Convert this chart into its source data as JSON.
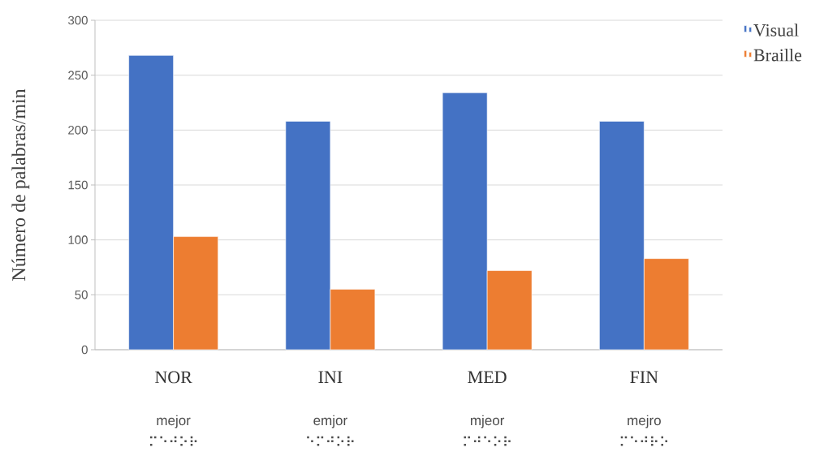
{
  "chart_data": {
    "type": "bar",
    "ylabel": "Número de palabras/min",
    "categories": [
      "NOR",
      "INI",
      "MED",
      "FIN"
    ],
    "series": [
      {
        "name": "Visual",
        "color": "#4472c4",
        "values": [
          268,
          208,
          234,
          208
        ]
      },
      {
        "name": "Braille",
        "color": "#ed7d31",
        "values": [
          103,
          55,
          72,
          83
        ]
      }
    ],
    "ylim": [
      0,
      300
    ],
    "yticks": [
      0,
      50,
      100,
      150,
      200,
      250,
      300
    ],
    "grid": "y",
    "legend": "top right",
    "annotations": [
      "mejor",
      "⠍⠑⠚⠕⠗",
      "emjor",
      "⠑⠍⠚⠕⠗",
      "mjeor",
      "⠍⠚⠑⠕⠗",
      "mejro",
      "⠍⠑⠚⠗⠕"
    ]
  }
}
